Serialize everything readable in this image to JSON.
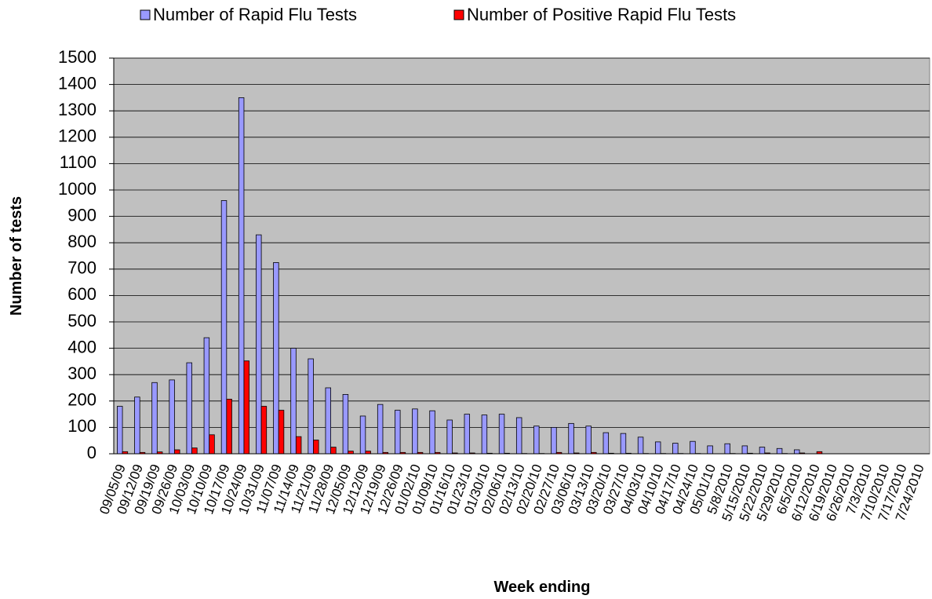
{
  "chart_data": {
    "type": "bar",
    "xlabel": "Week ending",
    "ylabel": "Number of tests",
    "categories": [
      "09/05/09",
      "09/12/09",
      "09/19/09",
      "09/26/09",
      "10/03/09",
      "10/10/09",
      "10/17/09",
      "10/24/09",
      "10/31/09",
      "11/07/09",
      "11/14/09",
      "11/21/09",
      "11/28/09",
      "12/05/09",
      "12/12/09",
      "12/19/09",
      "12/26/09",
      "01/02/10",
      "01/09/10",
      "01/16/10",
      "01/23/10",
      "01/30/10",
      "02/06/10",
      "02/13/10",
      "02/20/10",
      "02/27/10",
      "03/06/10",
      "03/13/10",
      "03/20/10",
      "03/27/10",
      "04/03/10",
      "04/10/10",
      "04/17/10",
      "04/24/10",
      "05/01/10",
      "5/8/2010",
      "5/15/2010",
      "5/22/2010",
      "5/29/2010",
      "6/5/2010",
      "6/12/2010",
      "6/19/2010",
      "6/26/2010",
      "7/3/2010",
      "7/10/2010",
      "7/17/2010",
      "7/24/2010"
    ],
    "series": [
      {
        "name": "Number of Rapid Flu Tests",
        "color": "#9999ff",
        "values": [
          180,
          215,
          270,
          280,
          345,
          440,
          960,
          1350,
          830,
          725,
          400,
          360,
          250,
          225,
          143,
          187,
          165,
          170,
          163,
          128,
          150,
          147,
          150,
          137,
          105,
          100,
          115,
          105,
          80,
          77,
          63,
          45,
          40,
          47,
          30,
          38,
          30,
          25,
          20,
          15,
          0,
          0,
          0,
          0,
          0,
          0,
          0
        ]
      },
      {
        "name": "Number of Positive Rapid Flu Tests",
        "color": "#ff0000",
        "values": [
          8,
          5,
          7,
          15,
          22,
          72,
          207,
          352,
          180,
          165,
          65,
          52,
          25,
          10,
          10,
          5,
          5,
          5,
          5,
          3,
          3,
          2,
          2,
          1,
          1,
          5,
          3,
          5,
          2,
          2,
          1,
          1,
          1,
          1,
          0,
          1,
          2,
          3,
          1,
          3,
          8,
          0,
          0,
          0,
          0,
          0,
          0
        ]
      }
    ],
    "ylim": [
      0,
      1500
    ],
    "yticks": [
      0,
      100,
      200,
      300,
      400,
      500,
      600,
      700,
      800,
      900,
      1000,
      1100,
      1200,
      1300,
      1400,
      1500
    ],
    "grid": true,
    "legend": "top",
    "plot_background": "#c0c0c0"
  }
}
